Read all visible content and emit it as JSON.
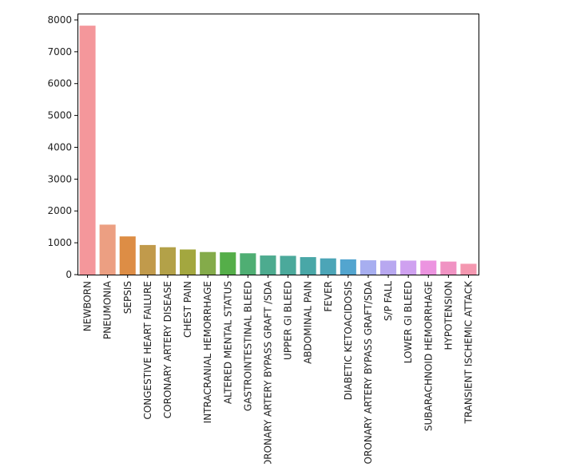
{
  "chart_data": {
    "type": "bar",
    "title": "",
    "xlabel": "",
    "ylabel": "",
    "ylim": [
      0,
      8200
    ],
    "yticks": [
      0,
      1000,
      2000,
      3000,
      4000,
      5000,
      6000,
      7000,
      8000
    ],
    "grid": false,
    "categories": [
      "NEWBORN",
      "PNEUMONIA",
      "SEPSIS",
      "CONGESTIVE HEART FAILURE",
      "CORONARY ARTERY DISEASE",
      "CHEST PAIN",
      "INTRACRANIAL HEMORRHAGE",
      "ALTERED MENTAL STATUS",
      "GASTROINTESTINAL BLEED",
      "CORONARY ARTERY BYPASS GRAFT /SDA",
      "UPPER GI BLEED",
      "ABDOMINAL PAIN",
      "FEVER",
      "DIABETIC KETOACIDOSIS",
      "CORONARY ARTERY BYPASS GRAFT/SDA",
      "S/P FALL",
      "LOWER GI BLEED",
      "SUBARACHNOID HEMORRHAGE",
      "HYPOTENSION",
      "TRANSIENT ISCHEMIC ATTACK"
    ],
    "values": [
      7820,
      1570,
      1200,
      930,
      860,
      790,
      710,
      700,
      670,
      600,
      590,
      550,
      510,
      480,
      450,
      440,
      440,
      440,
      410,
      340
    ],
    "colors": [
      "#f4979b",
      "#ec9f82",
      "#dd8d45",
      "#c19a4b",
      "#b3a148",
      "#a3a73f",
      "#84ab4a",
      "#55ae49",
      "#4fae73",
      "#4dab8f",
      "#4ba99b",
      "#49a7a7",
      "#4ca5b7",
      "#53a5cf",
      "#a7aef0",
      "#b8a8f0",
      "#cfa1f0",
      "#ec94e0",
      "#f093c3",
      "#f497b0"
    ]
  }
}
